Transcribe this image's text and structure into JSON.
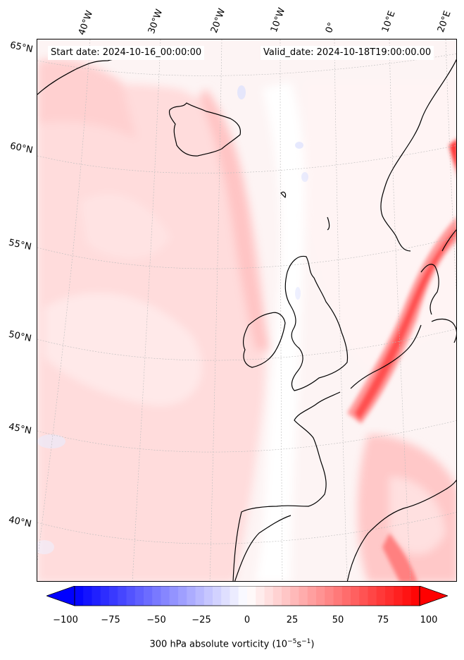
{
  "header": {
    "start_date": "Start date: 2024-10-16_00:00:00",
    "valid_date": "Valid_date: 2024-10-18T19:00:00.00"
  },
  "longitude_labels": [
    "40°W",
    "30°W",
    "20°W",
    "10°W",
    "0°",
    "10°E",
    "20°E"
  ],
  "latitude_labels": [
    "65°N",
    "60°N",
    "55°N",
    "50°N",
    "45°N",
    "40°N"
  ],
  "colorbar": {
    "ticks": [
      "−100",
      "−75",
      "−50",
      "−25",
      "0",
      "25",
      "50",
      "75",
      "100"
    ],
    "label": "300 hPa absolute vorticity (10",
    "label_exp1": "−5",
    "label_mid": "s",
    "label_exp2": "−1",
    "label_end": ")",
    "range": [
      -100,
      100
    ],
    "levels": 40,
    "colormap": "bwr",
    "extend": "both"
  },
  "colors": {
    "coastline": "#000000",
    "gridline": "#bbbbbb",
    "positive": "#ff0000",
    "negative": "#0000ff",
    "zero": "#ffffff"
  }
}
